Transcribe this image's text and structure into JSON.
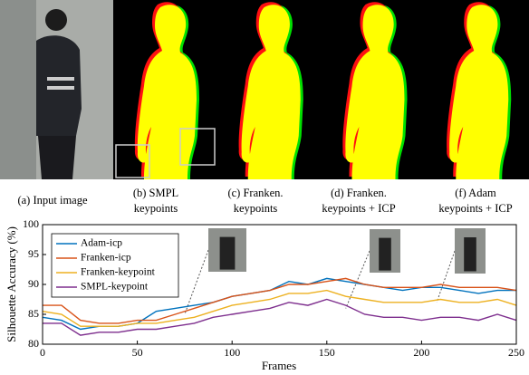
{
  "captions": [
    {
      "lines": [
        "(a) Input image"
      ]
    },
    {
      "lines": [
        "(b) SMPL",
        "keypoints"
      ]
    },
    {
      "lines": [
        "(c) Franken.",
        "keypoints"
      ]
    },
    {
      "lines": [
        "(d) Franken.",
        "keypoints + ICP"
      ]
    },
    {
      "lines": [
        "(f) Adam",
        "keypoints + ICP"
      ]
    }
  ],
  "chart_data": {
    "type": "line",
    "xlabel": "Frames",
    "ylabel": "Silhouette Accuracy (%)",
    "x": [
      0,
      10,
      20,
      30,
      40,
      50,
      60,
      70,
      80,
      90,
      100,
      110,
      120,
      130,
      140,
      150,
      160,
      170,
      180,
      190,
      200,
      210,
      220,
      230,
      240,
      250
    ],
    "xlim": [
      0,
      250
    ],
    "xticks": [
      0,
      50,
      100,
      150,
      200,
      250
    ],
    "ylim": [
      80,
      100
    ],
    "yticks": [
      80,
      85,
      90,
      95,
      100
    ],
    "legend": "upper left",
    "series": [
      {
        "name": "Adam-icp",
        "color": "#0072bd",
        "values": [
          84.5,
          84,
          82.5,
          83,
          83,
          83.5,
          85.5,
          86,
          86.5,
          87,
          88,
          88.5,
          89,
          90.5,
          90,
          91,
          90.5,
          90,
          89.5,
          89,
          89.5,
          89.5,
          89,
          88.5,
          89,
          89
        ]
      },
      {
        "name": "Franken-icp",
        "color": "#d95319",
        "values": [
          86.5,
          86.5,
          84,
          83.5,
          83.5,
          84,
          84,
          85,
          86,
          87,
          88,
          88.5,
          89,
          90,
          90,
          90.5,
          91,
          90,
          89.5,
          89.5,
          89.5,
          90,
          89.5,
          89.5,
          89.5,
          89
        ]
      },
      {
        "name": "Franken-keypoint",
        "color": "#edb120",
        "values": [
          85.5,
          85,
          83,
          83,
          83,
          83.5,
          83.5,
          84,
          84.5,
          85.5,
          86.5,
          87,
          87.5,
          88.5,
          88.5,
          89,
          88,
          87.5,
          87,
          87,
          87,
          87.5,
          87,
          87,
          87.5,
          86.5
        ]
      },
      {
        "name": "SMPL-keypoint",
        "color": "#7e2f8e",
        "values": [
          83.5,
          83.5,
          81.5,
          82,
          82,
          82.5,
          82.5,
          83,
          83.5,
          84.5,
          85,
          85.5,
          86,
          87,
          86.5,
          87.5,
          86.5,
          85,
          84.5,
          84.5,
          84,
          84.5,
          84.5,
          84,
          85,
          84
        ]
      }
    ]
  }
}
